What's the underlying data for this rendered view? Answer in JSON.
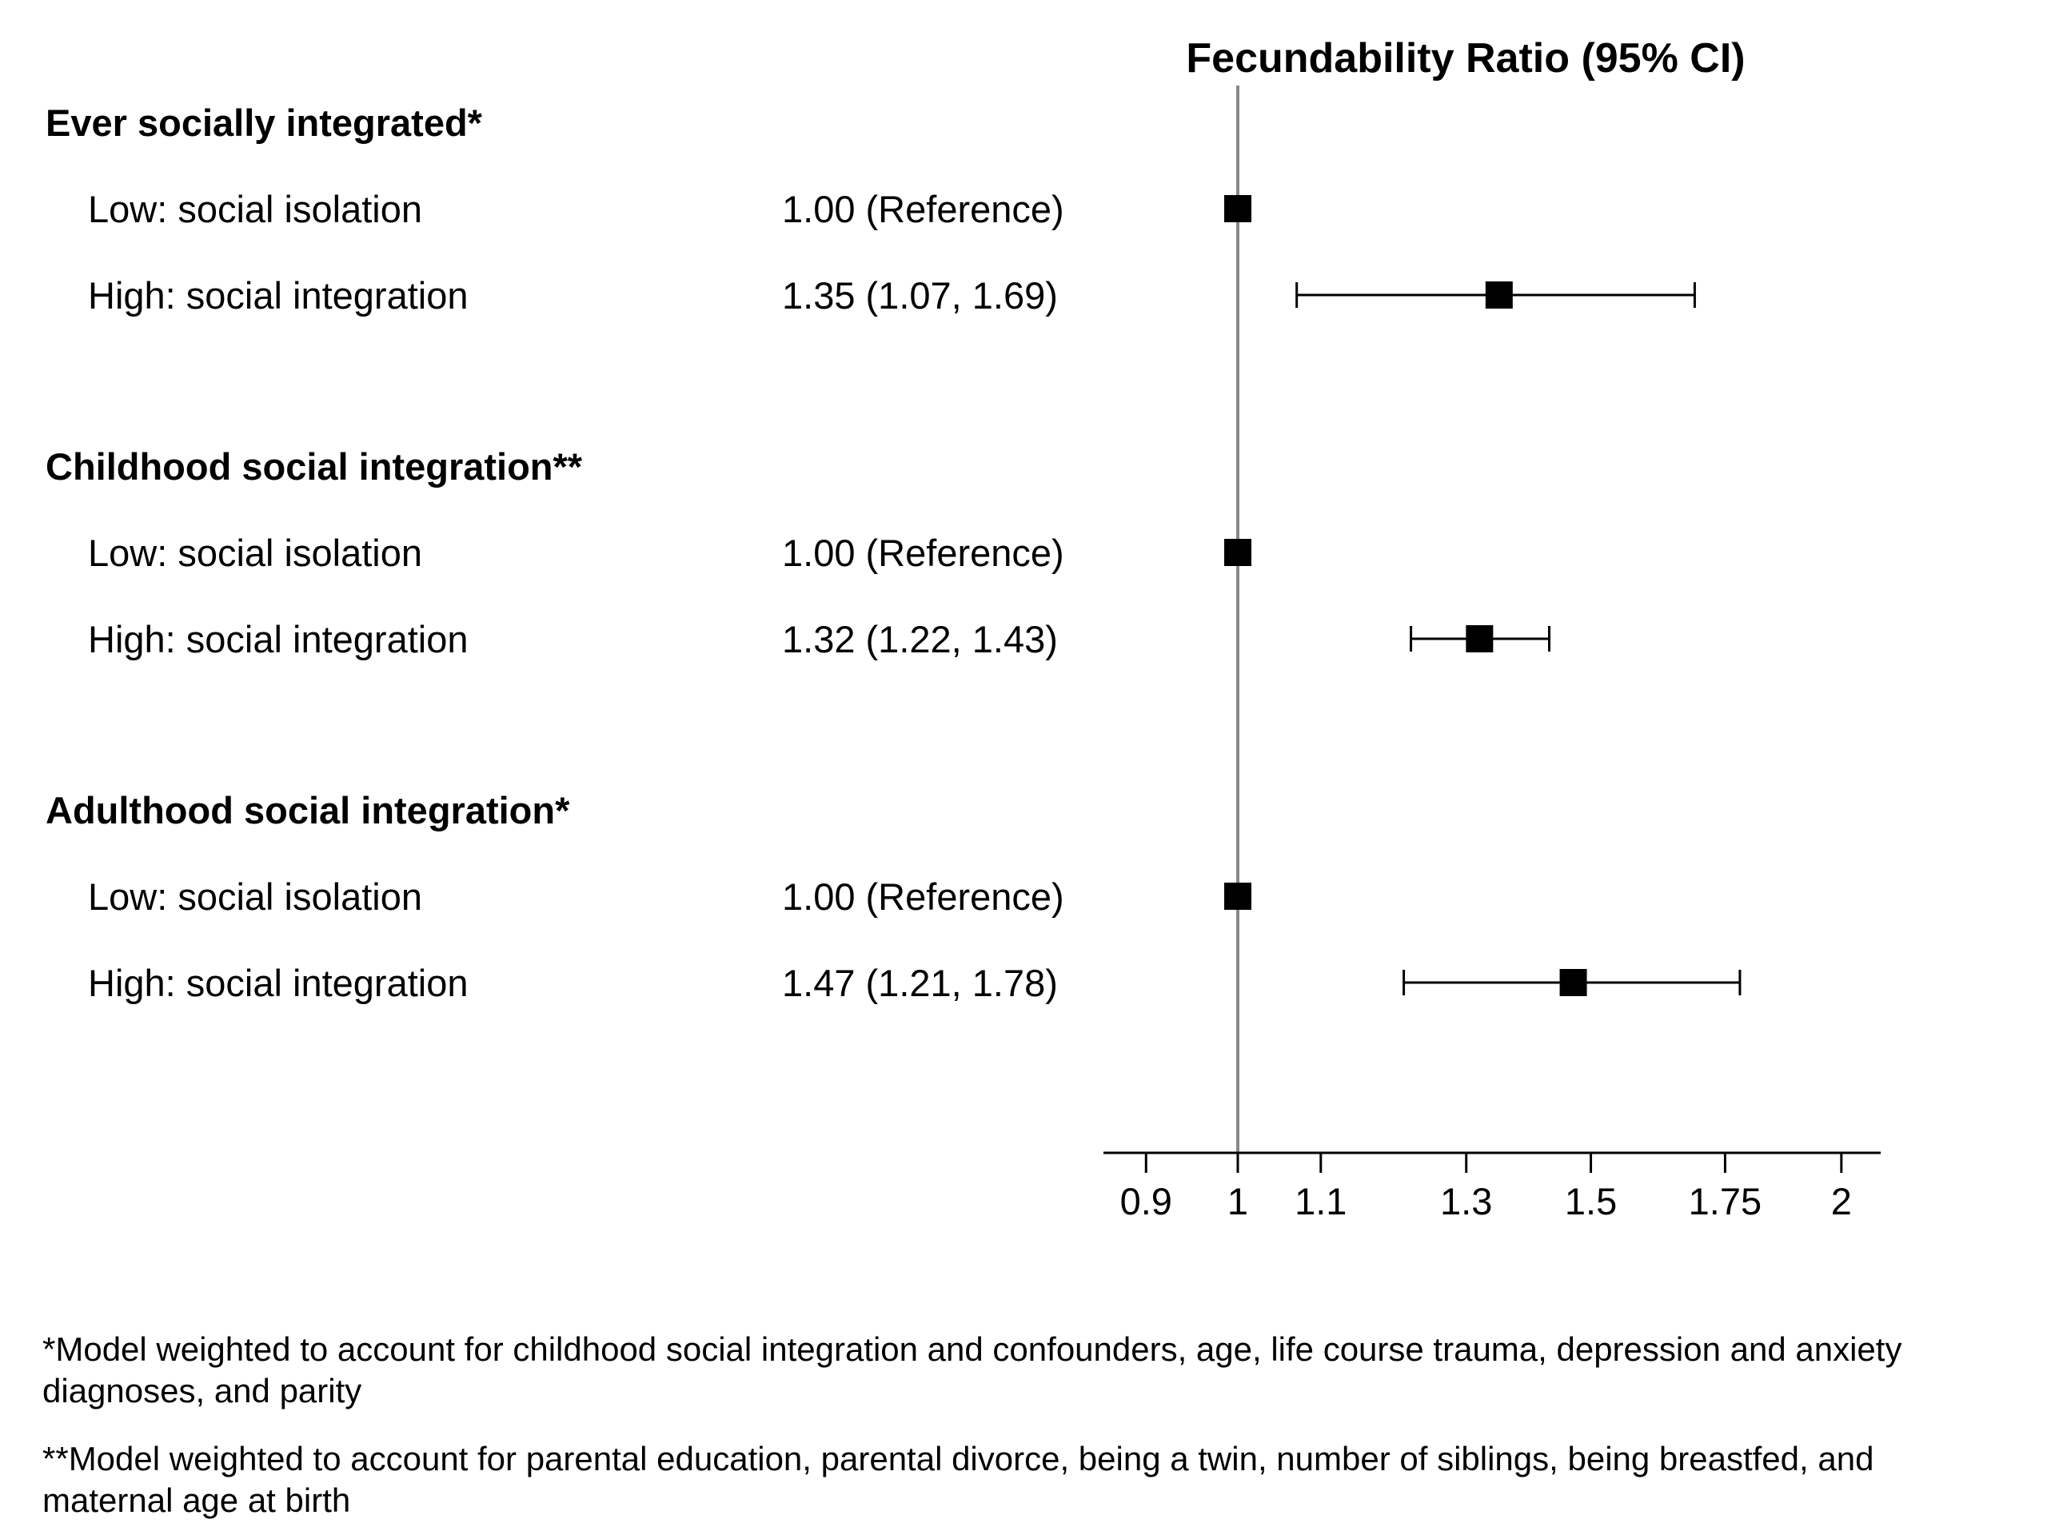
{
  "chart_data": {
    "type": "forest",
    "title": "Fecundability Ratio (95% CI)",
    "x_scale": "log",
    "xlim": [
      0.86,
      2.1
    ],
    "reference_line": 1,
    "ticks": [
      "0.9",
      "1",
      "1.1",
      "1.3",
      "1.5",
      "1.75",
      "2"
    ],
    "groups": [
      {
        "label": "Ever socially integrated*",
        "rows": [
          {
            "label": "Low: social isolation",
            "estimate_text": "1.00 (Reference)",
            "estimate": 1.0,
            "lower": null,
            "upper": null
          },
          {
            "label": "High: social integration",
            "estimate_text": "1.35 (1.07, 1.69)",
            "estimate": 1.35,
            "lower": 1.07,
            "upper": 1.69
          }
        ]
      },
      {
        "label": "Childhood social integration**",
        "rows": [
          {
            "label": "Low: social isolation",
            "estimate_text": "1.00 (Reference)",
            "estimate": 1.0,
            "lower": null,
            "upper": null
          },
          {
            "label": "High: social integration",
            "estimate_text": "1.32 (1.22, 1.43)",
            "estimate": 1.32,
            "lower": 1.22,
            "upper": 1.43
          }
        ]
      },
      {
        "label": "Adulthood social integration*",
        "rows": [
          {
            "label": "Low: social isolation",
            "estimate_text": "1.00 (Reference)",
            "estimate": 1.0,
            "lower": null,
            "upper": null
          },
          {
            "label": "High: social integration",
            "estimate_text": "1.47 (1.21, 1.78)",
            "estimate": 1.47,
            "lower": 1.21,
            "upper": 1.78
          }
        ]
      }
    ],
    "colors": {
      "marker": "#000000",
      "reference_line": "#888888",
      "axis": "#000000"
    }
  },
  "footnotes": {
    "fn1": "*Model weighted to account for childhood social integration and confounders, age, life course trauma, depression and anxiety diagnoses, and parity",
    "fn2": "**Model weighted to account for parental education, parental divorce, being a twin, number of siblings, being breastfed, and maternal age at birth"
  }
}
